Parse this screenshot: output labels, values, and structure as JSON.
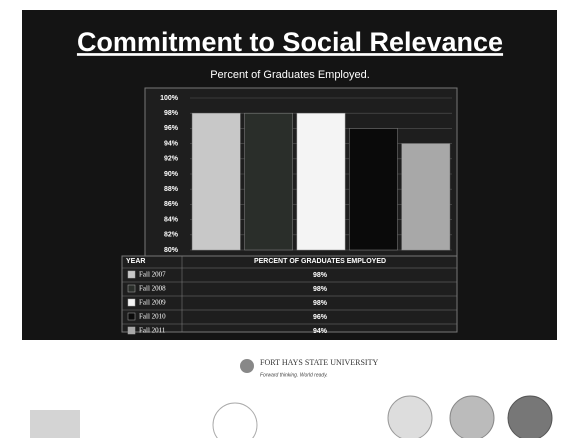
{
  "title": "Commitment to Social Relevance",
  "chart_data": {
    "type": "bar",
    "title": "Percent of Graduates Employed.",
    "categories": [
      "Fall 2007",
      "Fall 2008",
      "Fall 2009",
      "Fall 2010",
      "Fall 2011"
    ],
    "values": [
      98,
      98,
      98,
      96,
      94
    ],
    "value_labels": [
      "98%",
      "98%",
      "98%",
      "96%",
      "94%"
    ],
    "colors": [
      "#c8c8c8",
      "#2a2e2a",
      "#f4f4f4",
      "#0a0a0a",
      "#a8a8a8"
    ],
    "ylim": [
      80,
      100
    ],
    "yticks": [
      {
        "value": 80,
        "label": "80%"
      },
      {
        "value": 82,
        "label": "82%"
      },
      {
        "value": 84,
        "label": "84%"
      },
      {
        "value": 86,
        "label": "86%"
      },
      {
        "value": 88,
        "label": "88%"
      },
      {
        "value": 90,
        "label": "90%"
      },
      {
        "value": 92,
        "label": "92%"
      },
      {
        "value": 94,
        "label": "94%"
      },
      {
        "value": 96,
        "label": "96%"
      },
      {
        "value": 98,
        "label": "98%"
      },
      {
        "value": 100,
        "label": "100%"
      }
    ],
    "grid": true,
    "table_header": [
      "YEAR",
      "PERCENT OF GRADUATES EMPLOYED"
    ]
  },
  "logo": {
    "name": "FORT HAYS STATE UNIVERSITY",
    "tagline": "Forward thinking. World ready."
  }
}
